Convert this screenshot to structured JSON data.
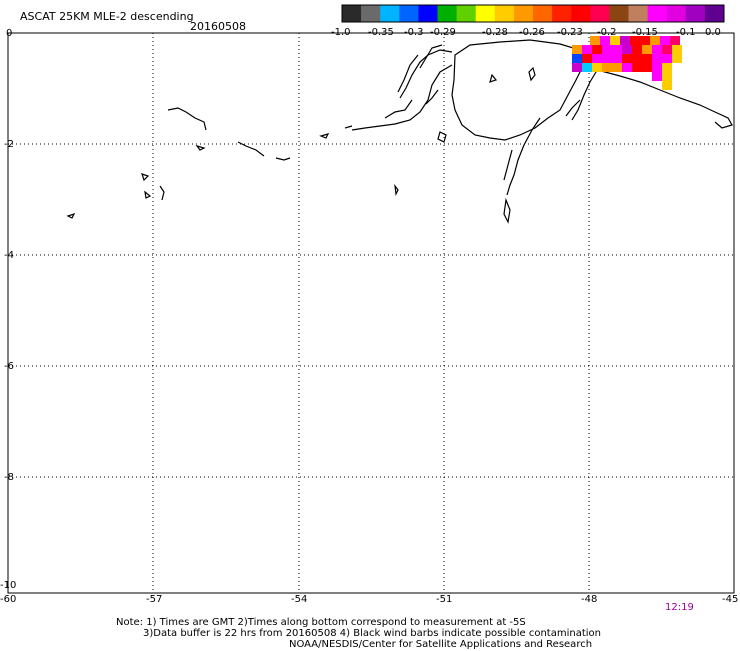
{
  "title": "ASCAT 25KM MLE-2 descending",
  "date": "20160508",
  "time_stamp": "12:19",
  "colorbar": {
    "labels": [
      "-1.0",
      "-0.35",
      "-0.3",
      "-0.29",
      "-0.28",
      "-0.26",
      "-0.23",
      "-0.2",
      "-0.15",
      "-0.1",
      "0.0"
    ],
    "colors": [
      "#2a2a2a",
      "#6a6a6a",
      "#00b4ff",
      "#0064ff",
      "#0000ff",
      "#00b000",
      "#60d000",
      "#ffff00",
      "#ffcc00",
      "#ff9900",
      "#ff6600",
      "#ff2200",
      "#ff0000",
      "#ff0050",
      "#8b4513",
      "#c08060",
      "#ff00ff",
      "#e000e0",
      "#a000c0",
      "#600090"
    ]
  },
  "y_axis": {
    "ticks": [
      "0",
      "-2",
      "-4",
      "-6",
      "-8",
      "-10"
    ]
  },
  "x_axis": {
    "ticks": [
      "-60",
      "-57",
      "-54",
      "-51",
      "-48",
      "-45"
    ]
  },
  "notes": [
    "Note: 1) Times are GMT 2)Times along bottom correspond to measurement at -5S",
    "3)Data buffer is 22 hrs from 20160508 4) Black wind barbs indicate possible contamination",
    "NOAA/NESDIS/Center for Satellite Applications and Research"
  ],
  "palette": {
    "grid": "#000000",
    "time_color": "#990099"
  }
}
